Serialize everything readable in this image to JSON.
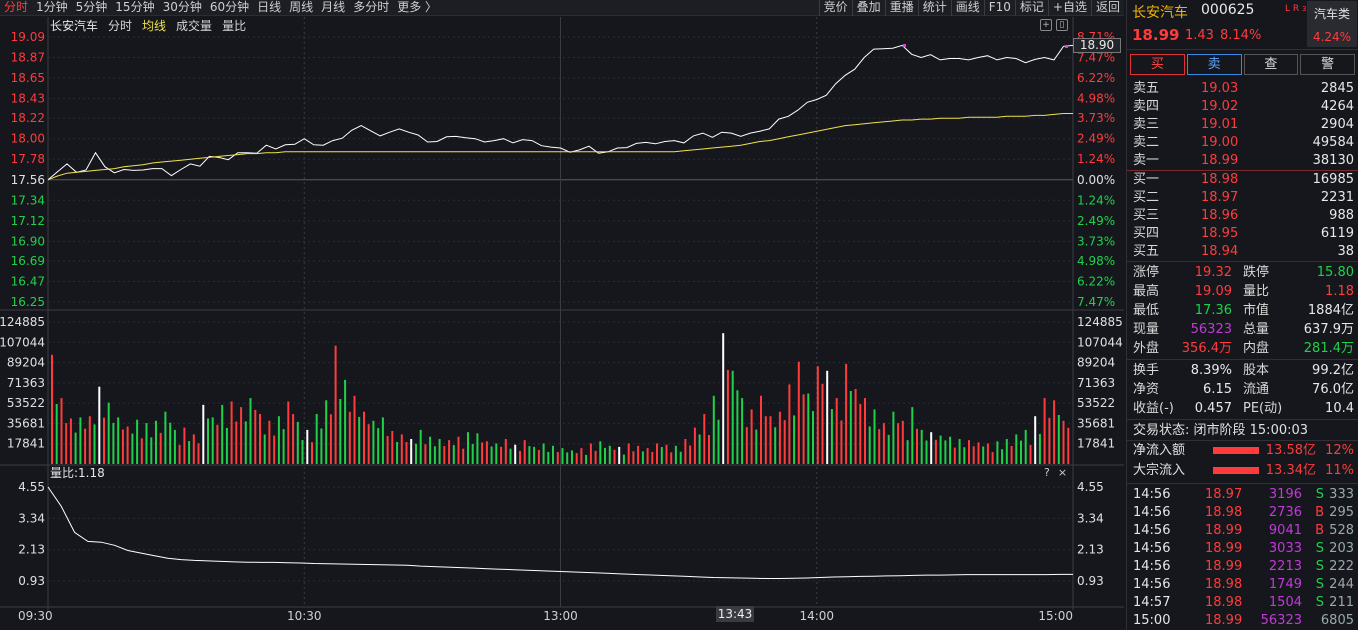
{
  "toolbar": {
    "periods": [
      "分时",
      "1分钟",
      "5分钟",
      "15分钟",
      "30分钟",
      "60分钟",
      "日线",
      "周线",
      "月线",
      "多分时",
      "更多 〉"
    ],
    "active_period": 0,
    "tools": [
      "竞价",
      "叠加",
      "重播",
      "统计",
      "画线",
      "F10",
      "标记",
      "+自选",
      "返回"
    ]
  },
  "chart_header": {
    "name": "长安汽车",
    "mode": "分时",
    "avg_label": "均线",
    "volume_label": "成交量",
    "ratio_label": "量比"
  },
  "price_tag": "18.90",
  "time_tag": "13:43",
  "volume_ratio_label": "量比:1.18",
  "lb_controls": [
    "?",
    "×"
  ],
  "chart_data": {
    "type": "line",
    "prev_close": 17.56,
    "price_ticks": [
      "19.09",
      "18.87",
      "18.65",
      "18.43",
      "18.22",
      "18.00",
      "17.78",
      "17.56",
      "17.34",
      "17.12",
      "16.90",
      "16.69",
      "16.47",
      "16.25"
    ],
    "pct_ticks": [
      "8.71%",
      "7.47%",
      "6.22%",
      "4.98%",
      "3.73%",
      "2.49%",
      "1.24%",
      "0.00%",
      "1.24%",
      "2.49%",
      "3.73%",
      "4.98%",
      "6.22%",
      "7.47%"
    ],
    "volume_ticks": [
      "124885",
      "107044",
      "89204",
      "71363",
      "53522",
      "35681",
      "17841"
    ],
    "ratio_ticks": [
      "4.55",
      "3.34",
      "2.13",
      "0.93"
    ],
    "time_labels": [
      "09:30",
      "10:30",
      "13:00",
      "14:00",
      "15:00"
    ],
    "series": [
      {
        "name": "price",
        "values": [
          17.56,
          17.66,
          17.72,
          17.62,
          17.68,
          17.84,
          17.68,
          17.65,
          17.66,
          17.64,
          17.68,
          17.67,
          17.66,
          17.62,
          17.66,
          17.71,
          17.72,
          17.8,
          17.78,
          17.79,
          17.84,
          17.83,
          17.86,
          17.92,
          17.87,
          17.95,
          17.93,
          17.98,
          17.95,
          17.92,
          17.96,
          18.02,
          18.08,
          18.12,
          18.1,
          18.02,
          18.05,
          18.12,
          18.06,
          18.02,
          17.98,
          17.96,
          18.0,
          18.04,
          18.0,
          17.98,
          17.98,
          17.97,
          17.98,
          17.97,
          17.98,
          17.96,
          17.94,
          17.9,
          17.88,
          17.87,
          17.87,
          17.9,
          17.86,
          17.85,
          17.88,
          17.92,
          17.94,
          17.94,
          17.96,
          17.96,
          17.96,
          17.97,
          18.02,
          18.04,
          18.03,
          18.06,
          18.04,
          18.04,
          18.05,
          18.06,
          18.12,
          18.2,
          18.22,
          18.32,
          18.38,
          18.4,
          18.48,
          18.58,
          18.66,
          18.76,
          18.86,
          18.94,
          18.98,
          18.96,
          18.98,
          18.92,
          18.86,
          18.88,
          18.86,
          18.85,
          18.84,
          18.86,
          18.86,
          18.87,
          18.86,
          18.86,
          18.84,
          18.83,
          18.84,
          18.85,
          18.86,
          18.98,
          19.0
        ]
      },
      {
        "name": "avg",
        "values": [
          17.56,
          17.6,
          17.63,
          17.64,
          17.65,
          17.66,
          17.67,
          17.68,
          17.7,
          17.71,
          17.72,
          17.74,
          17.75,
          17.76,
          17.77,
          17.78,
          17.79,
          17.8,
          17.81,
          17.82,
          17.83,
          17.84,
          17.84,
          17.85,
          17.85,
          17.86,
          17.86,
          17.86,
          17.86,
          17.86,
          17.86,
          17.86,
          17.86,
          17.86,
          17.86,
          17.86,
          17.86,
          17.86,
          17.86,
          17.86,
          17.86,
          17.86,
          17.86,
          17.86,
          17.86,
          17.86,
          17.86,
          17.86,
          17.86,
          17.86,
          17.86,
          17.86,
          17.86,
          17.86,
          17.86,
          17.86,
          17.86,
          17.86,
          17.86,
          17.86,
          17.86,
          17.86,
          17.86,
          17.86,
          17.86,
          17.86,
          17.86,
          17.87,
          17.88,
          17.89,
          17.9,
          17.91,
          17.92,
          17.93,
          17.95,
          17.97,
          17.98,
          18.0,
          18.02,
          18.04,
          18.06,
          18.08,
          18.1,
          18.12,
          18.14,
          18.15,
          18.16,
          18.17,
          18.18,
          18.19,
          18.2,
          18.2,
          18.21,
          18.21,
          18.22,
          18.22,
          18.22,
          18.23,
          18.23,
          18.23,
          18.23,
          18.24,
          18.24,
          18.24,
          18.25,
          18.25,
          18.26,
          18.27,
          18.27
        ]
      },
      {
        "name": "volume",
        "values": [
          96000,
          58000,
          40000,
          41000,
          42000,
          68000,
          54000,
          41000,
          33000,
          39000,
          36000,
          38000,
          46000,
          30000,
          32000,
          26000,
          52000,
          41000,
          52000,
          55000,
          50000,
          58000,
          44000,
          38000,
          42000,
          55000,
          37000,
          30000,
          44000,
          56000,
          104000,
          74000,
          60000,
          46000,
          38000,
          41000,
          29000,
          26000,
          22000,
          30000,
          24000,
          22000,
          21000,
          24000,
          28000,
          27000,
          20000,
          18000,
          22000,
          17000,
          21000,
          15000,
          18000,
          16000,
          14000,
          12000,
          14000,
          18000,
          20000,
          16000,
          15000,
          18000,
          16000,
          14000,
          18000,
          17000,
          16000,
          22000,
          32000,
          44000,
          60000,
          115000,
          82000,
          58000,
          48000,
          60000,
          42000,
          46000,
          70000,
          90000,
          62000,
          86000,
          82000,
          58000,
          88000,
          66000,
          58000,
          48000,
          36000,
          46000,
          38000,
          50000,
          30000,
          28000,
          25000,
          24000,
          22000,
          21000,
          19000,
          18000,
          20000,
          22000,
          26000,
          30000,
          42000,
          58000,
          56000,
          38000
        ]
      },
      {
        "name": "ratio",
        "values": [
          4.55,
          3.8,
          2.8,
          2.45,
          2.42,
          2.3,
          2.1,
          2.0,
          1.9,
          1.8,
          1.75,
          1.72,
          1.7,
          1.68,
          1.66,
          1.65,
          1.64,
          1.64,
          1.63,
          1.62,
          1.6,
          1.59,
          1.58,
          1.57,
          1.56,
          1.55,
          1.54,
          1.53,
          1.5,
          1.48,
          1.46,
          1.44,
          1.42,
          1.4,
          1.38,
          1.36,
          1.34,
          1.32,
          1.3,
          1.28,
          1.26,
          1.24,
          1.22,
          1.2,
          1.18,
          1.16,
          1.14,
          1.12,
          1.1,
          1.08,
          1.06,
          1.05,
          1.04,
          1.03,
          1.02,
          1.02,
          1.03,
          1.04,
          1.06,
          1.08,
          1.09,
          1.1,
          1.11,
          1.12,
          1.13,
          1.14,
          1.15,
          1.15,
          1.16,
          1.17,
          1.17,
          1.17,
          1.17,
          1.17,
          1.17,
          1.17,
          1.18,
          1.18
        ]
      }
    ]
  },
  "stock": {
    "name": "长安汽车",
    "code": "000625",
    "lr": "L R",
    "lr_sub": "300",
    "last": "18.99",
    "change": "1.43",
    "change_pct": "8.14%",
    "sector": "汽车类",
    "sector_pct": "4.24%"
  },
  "trade_buttons": [
    "买",
    "卖",
    "查",
    "警"
  ],
  "asks": [
    {
      "label": "卖五",
      "price": "19.03",
      "vol": "2845"
    },
    {
      "label": "卖四",
      "price": "19.02",
      "vol": "4264"
    },
    {
      "label": "卖三",
      "price": "19.01",
      "vol": "2904"
    },
    {
      "label": "卖二",
      "price": "19.00",
      "vol": "49584"
    },
    {
      "label": "卖一",
      "price": "18.99",
      "vol": "38130"
    }
  ],
  "bids": [
    {
      "label": "买一",
      "price": "18.98",
      "vol": "16985"
    },
    {
      "label": "买二",
      "price": "18.97",
      "vol": "2231"
    },
    {
      "label": "买三",
      "price": "18.96",
      "vol": "988"
    },
    {
      "label": "买四",
      "price": "18.95",
      "vol": "6119"
    },
    {
      "label": "买五",
      "price": "18.94",
      "vol": "38"
    }
  ],
  "stats1": [
    {
      "k1": "涨停",
      "v1": "19.32",
      "c1": "red",
      "k2": "跌停",
      "v2": "15.80",
      "c2": "green"
    },
    {
      "k1": "最高",
      "v1": "19.09",
      "c1": "red",
      "k2": "量比",
      "v2": "1.18",
      "c2": "red"
    },
    {
      "k1": "最低",
      "v1": "17.36",
      "c1": "green",
      "k2": "市值",
      "v2": "1884亿",
      "c2": "white"
    },
    {
      "k1": "现量",
      "v1": "56323",
      "c1": "purple",
      "k2": "总量",
      "v2": "637.9万",
      "c2": "white"
    },
    {
      "k1": "外盘",
      "v1": "356.4万",
      "c1": "red",
      "k2": "内盘",
      "v2": "281.4万",
      "c2": "green"
    }
  ],
  "stats2": [
    {
      "k1": "换手",
      "v1": "8.39%",
      "c1": "white",
      "k2": "股本",
      "v2": "99.2亿",
      "c2": "white"
    },
    {
      "k1": "净资",
      "v1": "6.15",
      "c1": "white",
      "k2": "流通",
      "v2": "76.0亿",
      "c2": "white"
    },
    {
      "k1": "收益(-)",
      "v1": "0.457",
      "c1": "white",
      "k2": "PE(动)",
      "v2": "10.4",
      "c2": "white"
    }
  ],
  "trade_status": "交易状态: 闭市阶段 15:00:03",
  "flows": [
    {
      "label": "净流入额",
      "amount": "13.58亿",
      "pct": "12%"
    },
    {
      "label": "大宗流入",
      "amount": "13.34亿",
      "pct": "11%"
    }
  ],
  "ticks": [
    {
      "time": "14:56",
      "price": "18.97",
      "vol": "3196",
      "dir": "S",
      "num": "333"
    },
    {
      "time": "14:56",
      "price": "18.98",
      "vol": "2736",
      "dir": "B",
      "num": "295"
    },
    {
      "time": "14:56",
      "price": "18.99",
      "vol": "9041",
      "dir": "B",
      "num": "528"
    },
    {
      "time": "14:56",
      "price": "18.99",
      "vol": "3033",
      "dir": "S",
      "num": "203"
    },
    {
      "time": "14:56",
      "price": "18.99",
      "vol": "2213",
      "dir": "S",
      "num": "222"
    },
    {
      "time": "14:56",
      "price": "18.98",
      "vol": "1749",
      "dir": "S",
      "num": "244"
    },
    {
      "time": "14:57",
      "price": "18.98",
      "vol": "1504",
      "dir": "S",
      "num": "211"
    },
    {
      "time": "15:00",
      "price": "18.99",
      "vol": "56323",
      "dir": "",
      "num": "6805"
    }
  ],
  "colors": {
    "up": "#ff3b3b",
    "down": "#1fd14a",
    "avg": "#f0e24a",
    "line": "#ffffff",
    "grid": "#2a2c33"
  }
}
